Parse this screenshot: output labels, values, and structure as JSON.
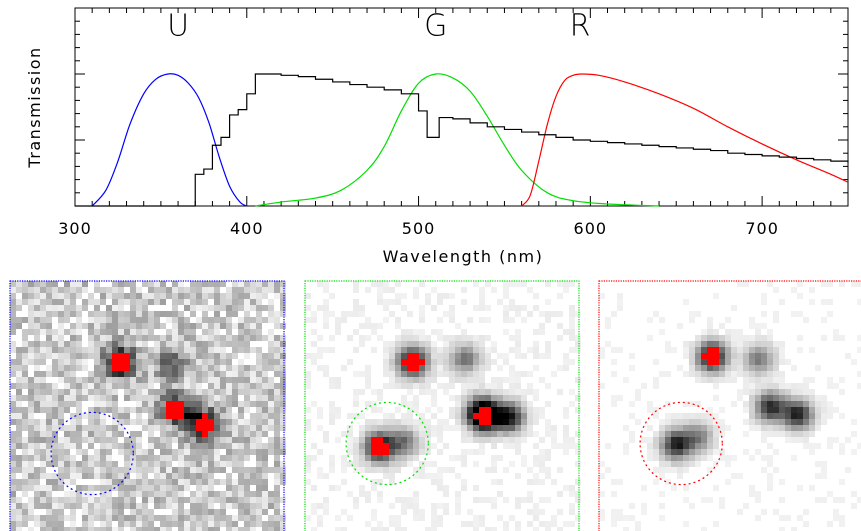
{
  "chart_data": [
    {
      "type": "line",
      "xlabel": "Wavelength (nm)",
      "ylabel": "Transmission",
      "xlim": [
        300,
        750
      ],
      "ylim": [
        0,
        1.5
      ],
      "x_ticks": [
        300,
        400,
        500,
        600,
        700
      ],
      "grid": false,
      "annotations": [
        {
          "text": "U",
          "x": 360,
          "y": 1.29
        },
        {
          "text": "G",
          "x": 510,
          "y": 1.29
        },
        {
          "text": "R",
          "x": 594,
          "y": 1.29
        }
      ],
      "colors": {
        "U": "#0000ff",
        "G": "#00dd00",
        "R": "#ff0000",
        "spectrum": "#000000"
      },
      "series": [
        {
          "name": "U",
          "color": "#0000ff",
          "x": [
            310,
            318,
            325,
            332,
            340,
            347,
            354,
            360,
            366,
            372,
            378,
            384,
            390,
            396,
            400
          ],
          "y": [
            0.0,
            0.12,
            0.34,
            0.62,
            0.85,
            0.96,
            1.0,
            0.99,
            0.93,
            0.82,
            0.63,
            0.37,
            0.15,
            0.03,
            0.0
          ]
        },
        {
          "name": "G",
          "color": "#00dd00",
          "x": [
            405,
            420,
            440,
            455,
            470,
            480,
            490,
            500,
            510,
            520,
            530,
            540,
            550,
            560,
            575,
            590,
            610,
            640
          ],
          "y": [
            0.0,
            0.03,
            0.06,
            0.12,
            0.27,
            0.45,
            0.72,
            0.93,
            1.0,
            0.97,
            0.87,
            0.68,
            0.46,
            0.27,
            0.1,
            0.04,
            0.015,
            0.0
          ]
        },
        {
          "name": "R",
          "color": "#ff0000",
          "x": [
            560,
            565,
            570,
            575,
            580,
            585,
            590,
            595,
            605,
            620,
            640,
            660,
            680,
            700,
            720,
            740,
            750
          ],
          "y": [
            0.0,
            0.08,
            0.34,
            0.62,
            0.83,
            0.95,
            0.99,
            1.0,
            0.99,
            0.94,
            0.85,
            0.74,
            0.6,
            0.47,
            0.35,
            0.24,
            0.18
          ]
        },
        {
          "name": "spectrum",
          "color": "#000000",
          "step": true,
          "x": [
            300,
            365,
            370,
            375,
            380,
            385,
            390,
            395,
            400,
            405,
            410,
            420,
            430,
            440,
            450,
            460,
            470,
            480,
            490,
            500,
            505,
            512,
            520,
            530,
            540,
            550,
            560,
            570,
            580,
            590,
            600,
            610,
            620,
            630,
            640,
            650,
            660,
            670,
            680,
            690,
            700,
            710,
            720,
            730,
            740,
            750
          ],
          "y": [
            0.0,
            0.0,
            0.24,
            0.28,
            0.46,
            0.52,
            0.69,
            0.73,
            0.85,
            1.0,
            1.0,
            0.99,
            0.98,
            0.96,
            0.94,
            0.92,
            0.9,
            0.88,
            0.85,
            0.72,
            0.52,
            0.67,
            0.66,
            0.63,
            0.6,
            0.58,
            0.56,
            0.54,
            0.52,
            0.5,
            0.49,
            0.48,
            0.47,
            0.46,
            0.45,
            0.44,
            0.43,
            0.42,
            0.4,
            0.39,
            0.38,
            0.37,
            0.36,
            0.35,
            0.34,
            0.33
          ]
        }
      ]
    },
    {
      "type": "heatmap",
      "panels": [
        {
          "band": "U",
          "frame_color": "#0000ff",
          "noise": 0.38,
          "sources": [
            {
              "x": 0.4,
              "y": 0.32,
              "peak": 1.0,
              "saturated": true
            },
            {
              "x": 0.6,
              "y": 0.51,
              "peak": 0.9,
              "saturated": true
            },
            {
              "x": 0.7,
              "y": 0.57,
              "peak": 1.0,
              "saturated": true
            },
            {
              "x": 0.58,
              "y": 0.33,
              "peak": 0.5
            }
          ],
          "circle": {
            "x": 0.3,
            "y": 0.69,
            "r": 0.15,
            "color": "#0000ff"
          }
        },
        {
          "band": "G",
          "frame_color": "#00dd00",
          "noise": 0.08,
          "sources": [
            {
              "x": 0.39,
              "y": 0.32,
              "peak": 1.0,
              "saturated": true
            },
            {
              "x": 0.58,
              "y": 0.31,
              "peak": 0.5
            },
            {
              "x": 0.64,
              "y": 0.52,
              "peak": 0.8
            },
            {
              "x": 0.74,
              "y": 0.54,
              "peak": 0.9
            },
            {
              "x": 0.65,
              "y": 0.54,
              "peak": 0.85,
              "saturated": true
            },
            {
              "x": 0.27,
              "y": 0.66,
              "peak": 1.0,
              "saturated": true
            },
            {
              "x": 0.36,
              "y": 0.64,
              "peak": 0.5
            }
          ],
          "circle": {
            "x": 0.3,
            "y": 0.65,
            "r": 0.15,
            "color": "#00dd00"
          }
        },
        {
          "band": "R",
          "frame_color": "#ff0000",
          "noise": 0.06,
          "sources": [
            {
              "x": 0.41,
              "y": 0.3,
              "peak": 1.0,
              "saturated": true
            },
            {
              "x": 0.58,
              "y": 0.31,
              "peak": 0.5
            },
            {
              "x": 0.62,
              "y": 0.5,
              "peak": 0.8
            },
            {
              "x": 0.72,
              "y": 0.53,
              "peak": 0.85
            },
            {
              "x": 0.28,
              "y": 0.65,
              "peak": 0.85
            },
            {
              "x": 0.36,
              "y": 0.62,
              "peak": 0.45
            }
          ],
          "circle": {
            "x": 0.3,
            "y": 0.65,
            "r": 0.15,
            "color": "#ff0000"
          }
        }
      ]
    }
  ]
}
